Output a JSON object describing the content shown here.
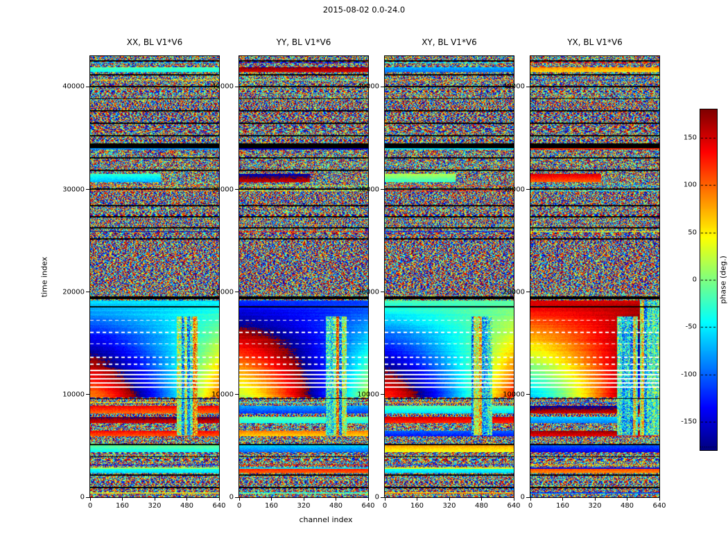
{
  "chart_data": {
    "type": "heatmap",
    "title": "2015-08-02 0.0-24.0",
    "xlabel": "channel index",
    "ylabel": "time index",
    "x_range": [
      0,
      640
    ],
    "y_range": [
      0,
      43000
    ],
    "x_ticks": [
      0,
      160,
      320,
      480,
      640
    ],
    "y_ticks": [
      0,
      10000,
      20000,
      30000,
      40000
    ],
    "colormap": "jet",
    "value_units": "degrees",
    "colorbar": {
      "label": "phase (deg.)",
      "ticks": [
        150,
        100,
        50,
        0,
        -50,
        -100,
        -150
      ],
      "vmin": -180,
      "vmax": 180
    },
    "panels": [
      {
        "label": "XX, BL V1*V6",
        "phase_offset": 0
      },
      {
        "label": "YY, BL V1*V6",
        "phase_offset": -70
      },
      {
        "label": "XY, BL V1*V6",
        "phase_offset": 30
      },
      {
        "label": "YX, BL V1*V6",
        "phase_offset": -155,
        "extra_scramble_channels": [
          545,
          640
        ]
      }
    ],
    "features": {
      "description": "Visibility phase waterfall: random phase noise over most time rows; smooth coherent fringe region between time indices 9700-19200 with curved phase-wrap contours; flagged integrations drawn as black horizontal lines; RFI-scrambled channel band 430-535; dashed/solid white flag lines inside fringe region.",
      "fringe_region": {
        "t_top": 19200,
        "t_bottom": 9700,
        "phase_top": -50,
        "rate_c0": 0.0235,
        "rate_c1": -0.016
      },
      "scramble_band": {
        "c0": 430,
        "c1": 535,
        "t0": 6000,
        "t1": 17600
      },
      "black_lines": [
        42550,
        41150,
        40050,
        38850,
        37650,
        36450,
        35250,
        33050,
        31850,
        30050,
        28450,
        27350,
        26250,
        25150,
        18550,
        9620,
        5150,
        3950,
        2150,
        950
      ],
      "black_bands": [
        [
          34050,
          34500
        ],
        [
          19300,
          19600
        ]
      ],
      "dashed_lines": [
        17250,
        16050,
        14950,
        13650,
        12950
      ],
      "solid_lines": [
        12350,
        11950,
        11550,
        11150,
        10750
      ],
      "moire_zones": [
        [
          20200,
          25800
        ],
        [
          28300,
          29800
        ],
        [
          35600,
          38600
        ]
      ],
      "coherent_bands": [
        {
          "t0": 41480,
          "t1": 41900,
          "phases": [
            -40,
            150,
            -95,
            60
          ]
        },
        {
          "t0": 30700,
          "t1": 31500,
          "c_max": 350,
          "phases": [
            -75,
            150,
            -30,
            100
          ]
        },
        {
          "t0": 8150,
          "t1": 8900,
          "phases": [
            95,
            -120,
            -60,
            150
          ]
        },
        {
          "t0": 7250,
          "t1": 7800,
          "phases": [
            150,
            -40,
            120,
            -90
          ]
        },
        {
          "t0": 5950,
          "t1": 6500,
          "phases": [
            105,
            60,
            -130,
            140
          ]
        },
        {
          "t0": 4420,
          "t1": 5120,
          "phases": [
            -45,
            -95,
            40,
            -140
          ]
        },
        {
          "t0": 2350,
          "t1": 2750,
          "phases": [
            -60,
            100,
            -60,
            85
          ]
        }
      ],
      "noise_seed": 7
    }
  }
}
